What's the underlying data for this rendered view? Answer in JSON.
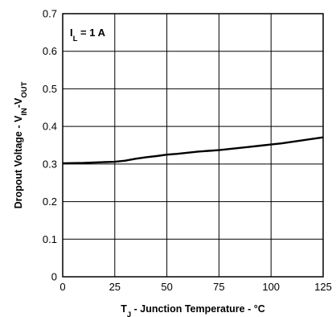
{
  "chart_data": {
    "type": "line",
    "annotation": {
      "main": "I",
      "sub": "L",
      "rest": " = 1 A"
    },
    "xlabel": {
      "main": "T",
      "sub": "J",
      "rest": " - Junction Temperature - °C"
    },
    "ylabel": {
      "pre": "Dropout Voltage - V",
      "sub1": "IN",
      "mid": "-V",
      "sub2": "OUT"
    },
    "xlim": [
      0,
      125
    ],
    "ylim": [
      0,
      0.7
    ],
    "x_ticks": [
      "0",
      "25",
      "50",
      "75",
      "100",
      "125"
    ],
    "y_ticks": [
      "0",
      "0.1",
      "0.2",
      "0.3",
      "0.4",
      "0.5",
      "0.6",
      "0.7"
    ],
    "grid": true,
    "series": [
      {
        "x": [
          0,
          10,
          20,
          25,
          30,
          35,
          40,
          45,
          50,
          55,
          60,
          65,
          70,
          75,
          80,
          85,
          90,
          95,
          100,
          105,
          110,
          115,
          120,
          125
        ],
        "y": [
          0.302,
          0.303,
          0.305,
          0.306,
          0.309,
          0.314,
          0.318,
          0.321,
          0.325,
          0.327,
          0.33,
          0.333,
          0.335,
          0.337,
          0.34,
          0.343,
          0.346,
          0.349,
          0.352,
          0.355,
          0.359,
          0.363,
          0.367,
          0.371
        ]
      }
    ]
  }
}
